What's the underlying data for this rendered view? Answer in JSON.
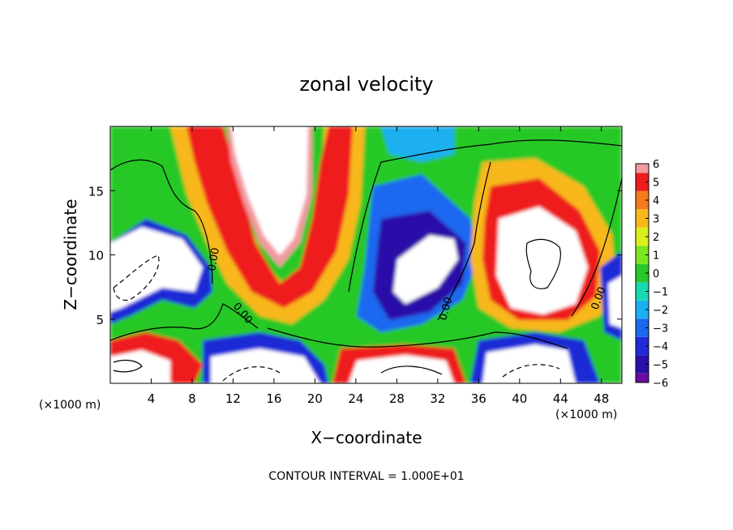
{
  "chart_data": {
    "type": "heatmap",
    "title": "zonal velocity",
    "xlabel": "X−coordinate",
    "ylabel": "Z−coordinate",
    "x_unit_left": "(×1000 m)",
    "x_unit_right": "(×1000 m)",
    "xlim": [
      0,
      50
    ],
    "ylim": [
      0,
      20
    ],
    "x_ticks": [
      4,
      8,
      12,
      16,
      20,
      24,
      28,
      32,
      36,
      40,
      44,
      48
    ],
    "y_ticks": [
      5,
      10,
      15
    ],
    "colorbar": {
      "min": -6,
      "max": 6,
      "labels": [
        "6",
        "5",
        "4",
        "3",
        "2",
        "1",
        "0",
        "−1",
        "−2",
        "−3",
        "−4",
        "−5",
        "−6"
      ],
      "levels": [
        {
          "value": -6,
          "color": "#6a0d9e"
        },
        {
          "value": -5,
          "color": "#2b0fa8"
        },
        {
          "value": -4,
          "color": "#1f2bd6"
        },
        {
          "value": -3,
          "color": "#1a68f0"
        },
        {
          "value": -2,
          "color": "#1ab0f0"
        },
        {
          "value": -1,
          "color": "#18d8b0"
        },
        {
          "value": 0,
          "color": "#28c828"
        },
        {
          "value": 1,
          "color": "#7ae61e"
        },
        {
          "value": 2,
          "color": "#dcef1e"
        },
        {
          "value": 3,
          "color": "#f8b81c"
        },
        {
          "value": 4,
          "color": "#f57a1a"
        },
        {
          "value": 5,
          "color": "#ee1c1c"
        },
        {
          "value": 6,
          "color": "#f29aa0"
        }
      ]
    },
    "contour_labels": [
      "0.00",
      "0.00",
      "0.00",
      "0.00"
    ],
    "contour_interval_text": "CONTOUR INTERVAL = 1.000E+01"
  }
}
